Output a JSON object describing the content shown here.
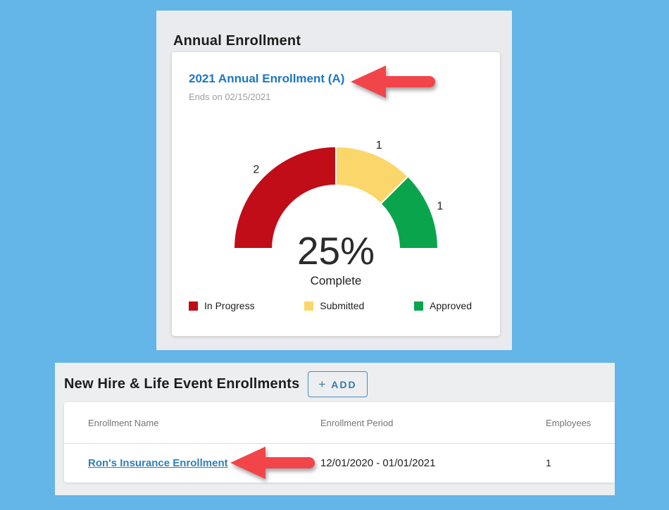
{
  "page": {
    "background_color": "#64b5e8"
  },
  "annual_enrollment": {
    "title": "Annual Enrollment",
    "plan_link": "2021 Annual Enrollment (A)",
    "ends_on": "Ends on 02/15/2021"
  },
  "chart_data": {
    "type": "gauge",
    "span_degrees": 180,
    "segments": [
      {
        "label": "In Progress",
        "value": 2,
        "color": "#c00d18"
      },
      {
        "label": "Submitted",
        "value": 1,
        "color": "#fbd76b"
      },
      {
        "label": "Approved",
        "value": 1,
        "color": "#0aa44d"
      }
    ],
    "center_text": "25%",
    "center_subtext": "Complete",
    "legend_position": "bottom"
  },
  "new_hire": {
    "title": "New Hire & Life Event Enrollments",
    "add_button": {
      "plus": "+",
      "label": "ADD"
    },
    "table": {
      "headers": [
        "Enrollment Name",
        "Enrollment Period",
        "Employees"
      ],
      "rows": [
        {
          "name": "Ron's Insurance Enrollment",
          "period": "12/01/2020 - 01/01/2021",
          "employees": "1"
        }
      ]
    }
  },
  "annotations": {
    "arrow_color": "#f2454a"
  }
}
